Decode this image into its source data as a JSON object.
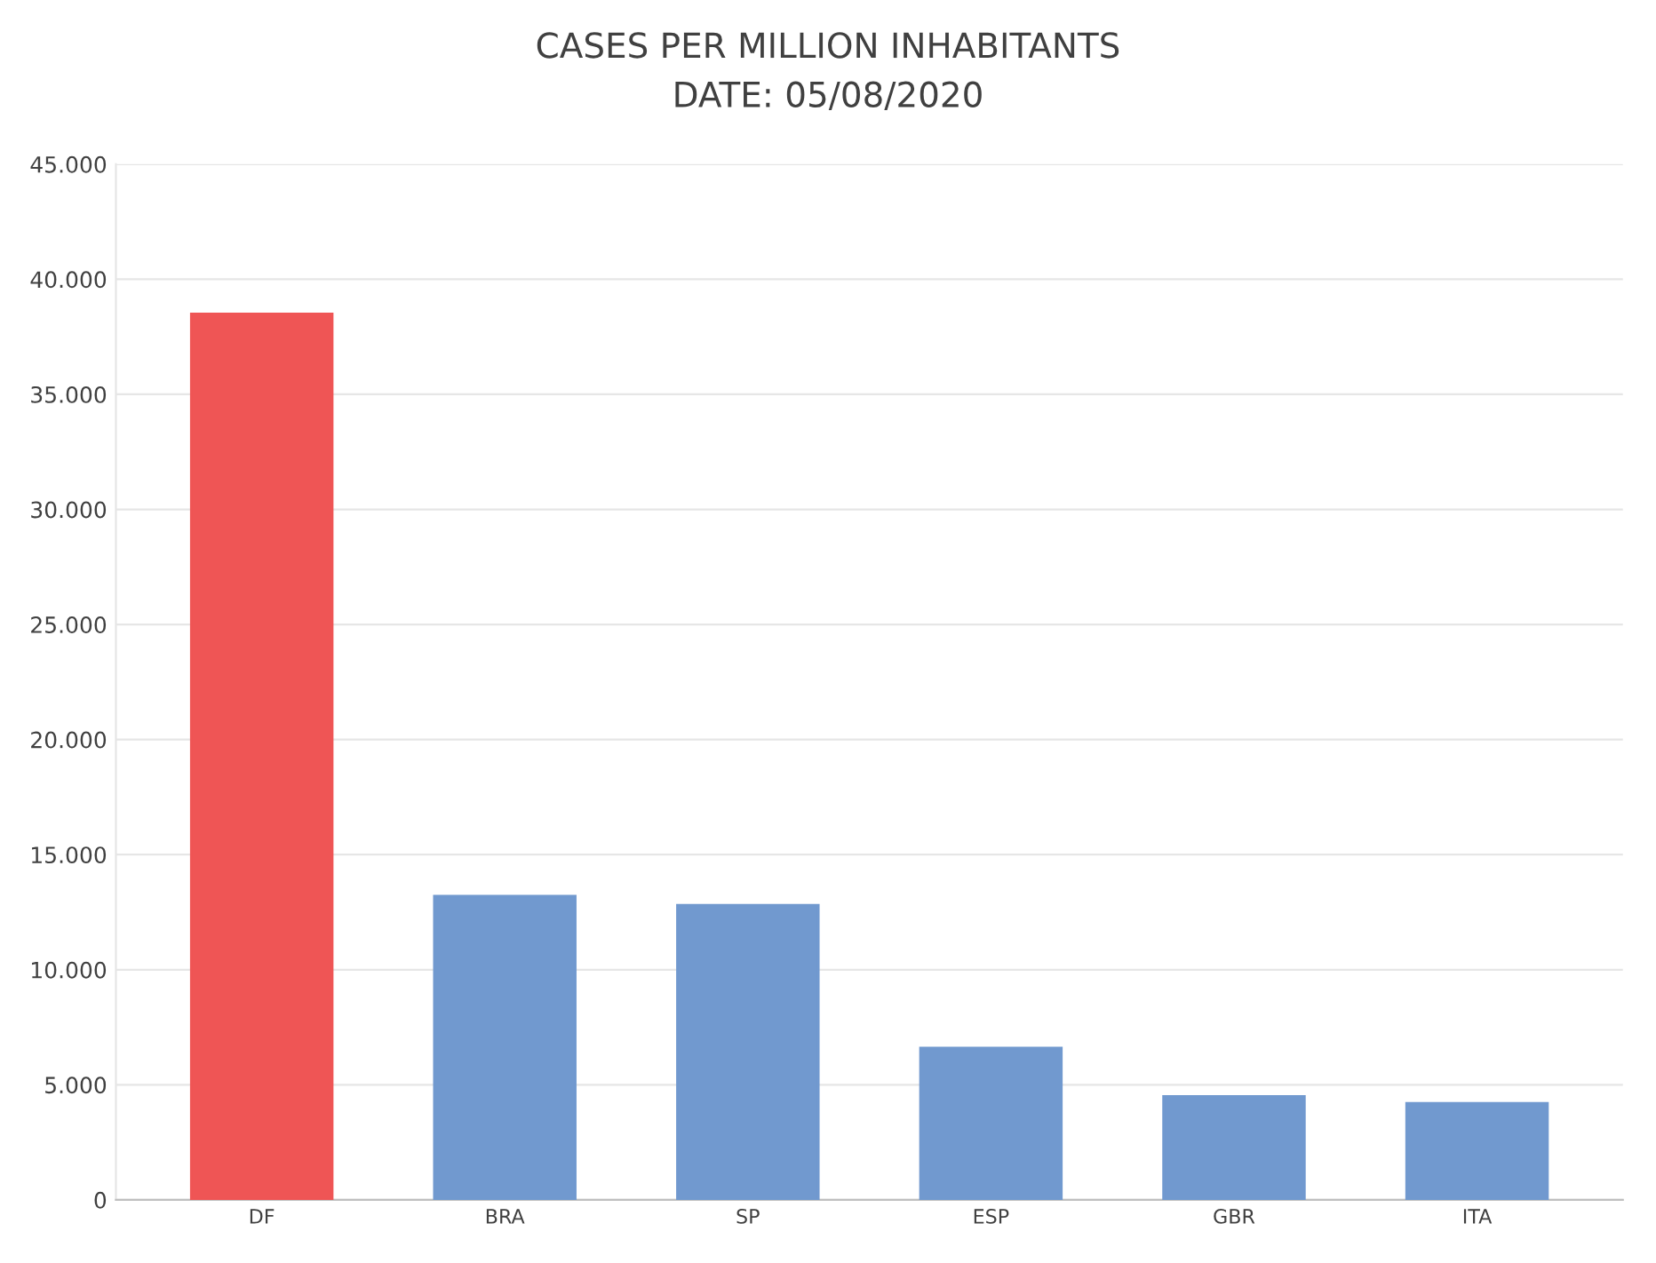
{
  "chart_data": {
    "type": "bar",
    "title": "CASES PER MILLION INHABITANTS\nDATE: 05/08/2020",
    "categories": [
      "DF",
      "BRA",
      "SP",
      "ESP",
      "GBR",
      "ITA"
    ],
    "values": [
      38500,
      13200,
      12800,
      6600,
      4500,
      4200
    ],
    "colors": [
      "#ef5555",
      "#7199cf",
      "#7199cf",
      "#7199cf",
      "#7199cf",
      "#7199cf"
    ],
    "ylim": [
      0,
      45000
    ],
    "yticks": [
      0,
      {
        "value": 5000,
        "label": "5.000"
      },
      {
        "value": 10000,
        "label": "10.000"
      },
      {
        "value": 15000,
        "label": "15.000"
      },
      {
        "value": 20000,
        "label": "20.000"
      },
      {
        "value": 25000,
        "label": "25.000"
      },
      {
        "value": 30000,
        "label": "30.000"
      },
      {
        "value": 35000,
        "label": "35.000"
      },
      {
        "value": 40000,
        "label": "40.000"
      },
      {
        "value": 45000,
        "label": "45.000"
      }
    ],
    "grid": "y"
  }
}
